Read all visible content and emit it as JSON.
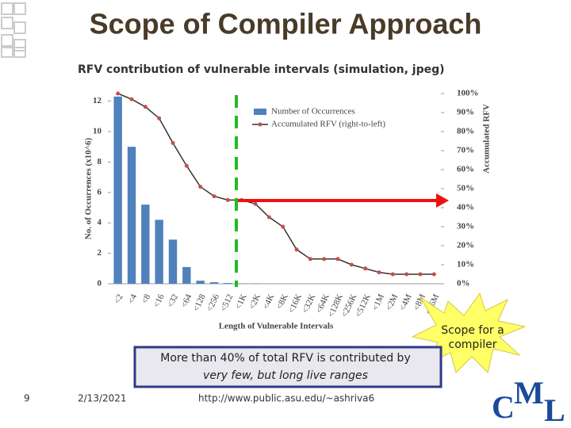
{
  "slide": {
    "title": "Scope of Compiler Approach",
    "subtitle": "RFV contribution of vulnerable intervals (simulation, jpeg)",
    "note": [
      "More than 40% of total RFV is contributed by",
      "very few, but long live ranges"
    ],
    "callout": [
      "Scope for a",
      "compiler"
    ],
    "page": "9",
    "date": "2/13/2021",
    "url": "http://www.public.asu.edu/~ashriva6",
    "logo": [
      "C",
      "M",
      "L"
    ]
  },
  "chart_data": {
    "type": "bar-line",
    "x_label": "Length of Vulnerable Intervals",
    "y_label": "No. of Occurrences (x10^6)",
    "y2_label": "Accumulated RFV",
    "categories": [
      "<2",
      "<4",
      "<8",
      "<16",
      "<32",
      "<64",
      "<128",
      "<256",
      "<512",
      "<1K",
      "<2K",
      "<4K",
      "<8K",
      "<16K",
      "<32K",
      "<64K",
      "<128K",
      "<256K",
      "<512K",
      "<1M",
      "<2M",
      "<4M",
      "<8M",
      "<16M"
    ],
    "series": [
      {
        "name": "Number of Occurrences",
        "kind": "bar",
        "color": "#4f81bd",
        "values": [
          12.3,
          9,
          5.2,
          4.2,
          2.9,
          1.1,
          0.2,
          0.1,
          0.05,
          0.02,
          0.02,
          0,
          0,
          0,
          0,
          0,
          0,
          0,
          0,
          0,
          0,
          0,
          0,
          0
        ]
      },
      {
        "name": "Accumulated RFV (right-to-left)",
        "kind": "line",
        "axis": "y2",
        "color": "#c0504d",
        "values": [
          100,
          97,
          93,
          87,
          74,
          62,
          51,
          46,
          44,
          44,
          42,
          35,
          30,
          18,
          13,
          13,
          13,
          10,
          8,
          6,
          5,
          5,
          5,
          5
        ]
      }
    ],
    "ylim": [
      0,
      12.5
    ],
    "yticks": [
      0,
      2,
      4,
      6,
      8,
      10,
      12
    ],
    "y2lim": [
      0,
      100
    ],
    "y2ticks": [
      {
        "value": 0,
        "label": "0%"
      },
      {
        "value": 10,
        "label": "10%"
      },
      {
        "value": 20,
        "label": "20%"
      },
      {
        "value": 30,
        "label": "30%"
      },
      {
        "value": 40,
        "label": "40%"
      },
      {
        "value": 50,
        "label": "50%"
      },
      {
        "value": 60,
        "label": "60%"
      },
      {
        "value": 70,
        "label": "70%"
      },
      {
        "value": 80,
        "label": "80%"
      },
      {
        "value": 90,
        "label": "90%"
      },
      {
        "value": 100,
        "label": "100%"
      }
    ],
    "legend": "top-right"
  }
}
